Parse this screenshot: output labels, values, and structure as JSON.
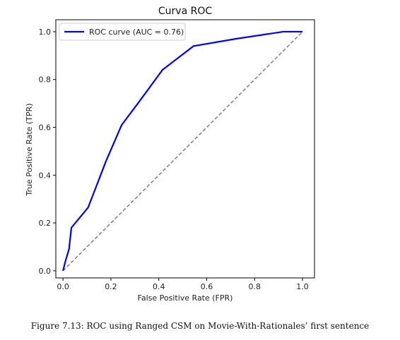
{
  "chart_data": {
    "type": "line",
    "title": "Curva ROC",
    "xlabel": "False Positive Rate (FPR)",
    "ylabel": "True Positive Rate (TPR)",
    "xlim": [
      -0.03,
      1.05
    ],
    "ylim": [
      -0.03,
      1.05
    ],
    "xticks": [
      0.0,
      0.2,
      0.4,
      0.6,
      0.8,
      1.0
    ],
    "yticks": [
      0.0,
      0.2,
      0.4,
      0.6,
      0.8,
      1.0
    ],
    "xtick_labels": [
      "0.0",
      "0.2",
      "0.4",
      "0.6",
      "0.8",
      "1.0"
    ],
    "ytick_labels": [
      "0.0",
      "0.2",
      "0.4",
      "0.6",
      "0.8",
      "1.0"
    ],
    "grid": false,
    "legend_position": "top-left",
    "series": [
      {
        "name": "ROC curve (AUC = 0.76)",
        "color": "#0000ee",
        "style": "solid",
        "x": [
          0.0,
          0.01,
          0.025,
          0.035,
          0.105,
          0.18,
          0.245,
          0.32,
          0.415,
          0.545,
          0.72,
          0.92,
          1.0
        ],
        "y": [
          0.0,
          0.04,
          0.09,
          0.18,
          0.265,
          0.46,
          0.61,
          0.71,
          0.84,
          0.94,
          0.97,
          1.0,
          1.0
        ]
      },
      {
        "color": "#808080",
        "style": "dashed",
        "x": [
          0.0,
          1.0
        ],
        "y": [
          0.0,
          1.0
        ]
      }
    ]
  },
  "caption": "Figure 7.13: ROC using Ranged CSM on Movie-With-Rationales’ first sentence"
}
